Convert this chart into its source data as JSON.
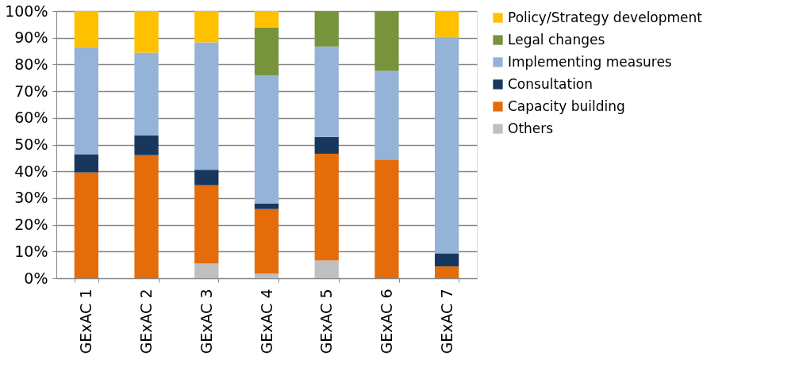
{
  "chart_data": {
    "type": "bar",
    "stacked": true,
    "categories": [
      "GExAC 1",
      "GExAC 2",
      "GExAC 3",
      "GExAC 4",
      "GExAC 5",
      "GExAC 6",
      "GExAC 7"
    ],
    "series": [
      {
        "name": "Others",
        "color": "#bfbfbf",
        "values": [
          null,
          null,
          5.5,
          1.8,
          6.7,
          null,
          null
        ]
      },
      {
        "name": "Capacity building",
        "color": "#e46c0a",
        "values": [
          39.6,
          46.1,
          29.3,
          24.1,
          39.9,
          44.4,
          4.4
        ]
      },
      {
        "name": "Consultation",
        "color": "#17375e",
        "values": [
          6.8,
          7.3,
          5.8,
          2.0,
          6.3,
          null,
          4.8
        ]
      },
      {
        "name": "Implementing measures",
        "color": "#95b3d7",
        "values": [
          40.2,
          31.0,
          47.7,
          48.0,
          33.8,
          33.2,
          81.1
        ]
      },
      {
        "name": "Legal changes",
        "color": "#77933c",
        "values": [
          null,
          null,
          null,
          18.0,
          13.3,
          22.4,
          null
        ]
      },
      {
        "name": "Policy/Strategy development",
        "color": "#ffc000",
        "values": [
          13.4,
          15.6,
          11.7,
          6.1,
          null,
          null,
          9.7
        ]
      }
    ],
    "ylim": [
      0,
      100
    ],
    "yticks": [
      {
        "value": 0,
        "label": "0%"
      },
      {
        "value": 10,
        "label": "10%"
      },
      {
        "value": 20,
        "label": "20%"
      },
      {
        "value": 30,
        "label": "30%"
      },
      {
        "value": 40,
        "label": "40%"
      },
      {
        "value": 50,
        "label": "50%"
      },
      {
        "value": 60,
        "label": "60%"
      },
      {
        "value": 70,
        "label": "70%"
      },
      {
        "value": 80,
        "label": "80%"
      },
      {
        "value": 90,
        "label": "90%"
      },
      {
        "value": 100,
        "label": "100%"
      }
    ],
    "grid": "y",
    "legend": "right"
  }
}
